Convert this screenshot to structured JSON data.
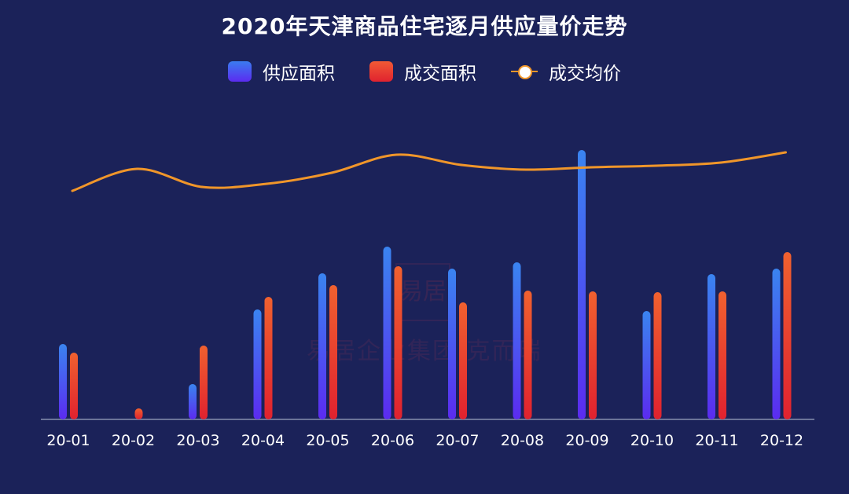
{
  "chart_data": {
    "type": "bar",
    "title": "2020年天津商品住宅逐月供应量价走势",
    "categories": [
      "20-01",
      "20-02",
      "20-03",
      "20-04",
      "20-05",
      "20-06",
      "20-07",
      "20-08",
      "20-09",
      "20-10",
      "20-11",
      "20-12"
    ],
    "series": [
      {
        "name": "供应面积",
        "type": "bar",
        "color": "#3a7cf0",
        "values": [
          96,
          0,
          45,
          140,
          186,
          220,
          192,
          200,
          343,
          138,
          185,
          192
        ]
      },
      {
        "name": "成交面积",
        "type": "bar",
        "color": "#f05a35",
        "values": [
          85,
          14,
          94,
          156,
          171,
          195,
          149,
          164,
          163,
          162,
          163,
          213
        ]
      },
      {
        "name": "成交均价",
        "type": "line",
        "color": "#f0962a",
        "values": [
          291,
          319,
          296,
          300,
          314,
          337,
          324,
          318,
          321,
          323,
          327,
          340
        ]
      }
    ],
    "ylim": [
      0,
      364
    ],
    "value_note": "no y-axis printed; values are relative estimates",
    "grid": false,
    "legend_position": "top-center",
    "background": "#1b2259",
    "watermark": {
      "seal": "易居",
      "text": "易居企业集团·克而瑞"
    }
  }
}
